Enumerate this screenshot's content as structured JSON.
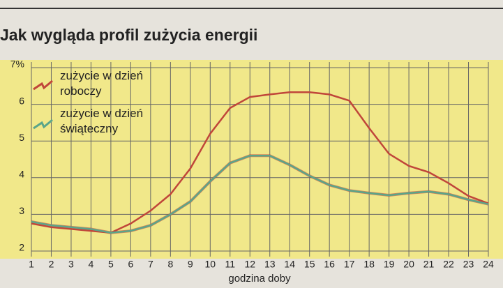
{
  "chart_data": {
    "type": "line",
    "title": "Jak wygląda profil zużycia energii",
    "x_label": "godzina doby",
    "x": [
      1,
      2,
      3,
      4,
      5,
      6,
      7,
      8,
      9,
      10,
      11,
      12,
      13,
      14,
      15,
      16,
      17,
      18,
      19,
      20,
      21,
      22,
      23,
      24
    ],
    "series": [
      {
        "name": "zużycie w dzień roboczy",
        "color": "#c0463a",
        "values": [
          2.75,
          2.65,
          2.6,
          2.55,
          2.5,
          2.75,
          3.1,
          3.55,
          4.25,
          5.2,
          5.9,
          6.2,
          6.27,
          6.33,
          6.33,
          6.27,
          6.1,
          5.35,
          4.65,
          4.32,
          4.15,
          3.85,
          3.5,
          3.3
        ]
      },
      {
        "name": "zużycie w dzień świąteczny",
        "color": "#5aa58a",
        "values": [
          2.8,
          2.7,
          2.65,
          2.6,
          2.5,
          2.55,
          2.7,
          3.0,
          3.35,
          3.9,
          4.4,
          4.6,
          4.6,
          4.35,
          4.05,
          3.8,
          3.65,
          3.58,
          3.52,
          3.58,
          3.62,
          3.55,
          3.4,
          3.28
        ]
      }
    ],
    "xlim": [
      1,
      24
    ],
    "xticks": [
      1,
      2,
      3,
      4,
      5,
      6,
      7,
      8,
      9,
      10,
      11,
      12,
      13,
      14,
      15,
      16,
      17,
      18,
      19,
      20,
      21,
      22,
      23,
      24
    ],
    "ylim": [
      2,
      7
    ],
    "yticks": [
      2,
      3,
      4,
      5,
      6,
      {
        "value": 7,
        "label": "7%"
      }
    ],
    "grid": true
  }
}
